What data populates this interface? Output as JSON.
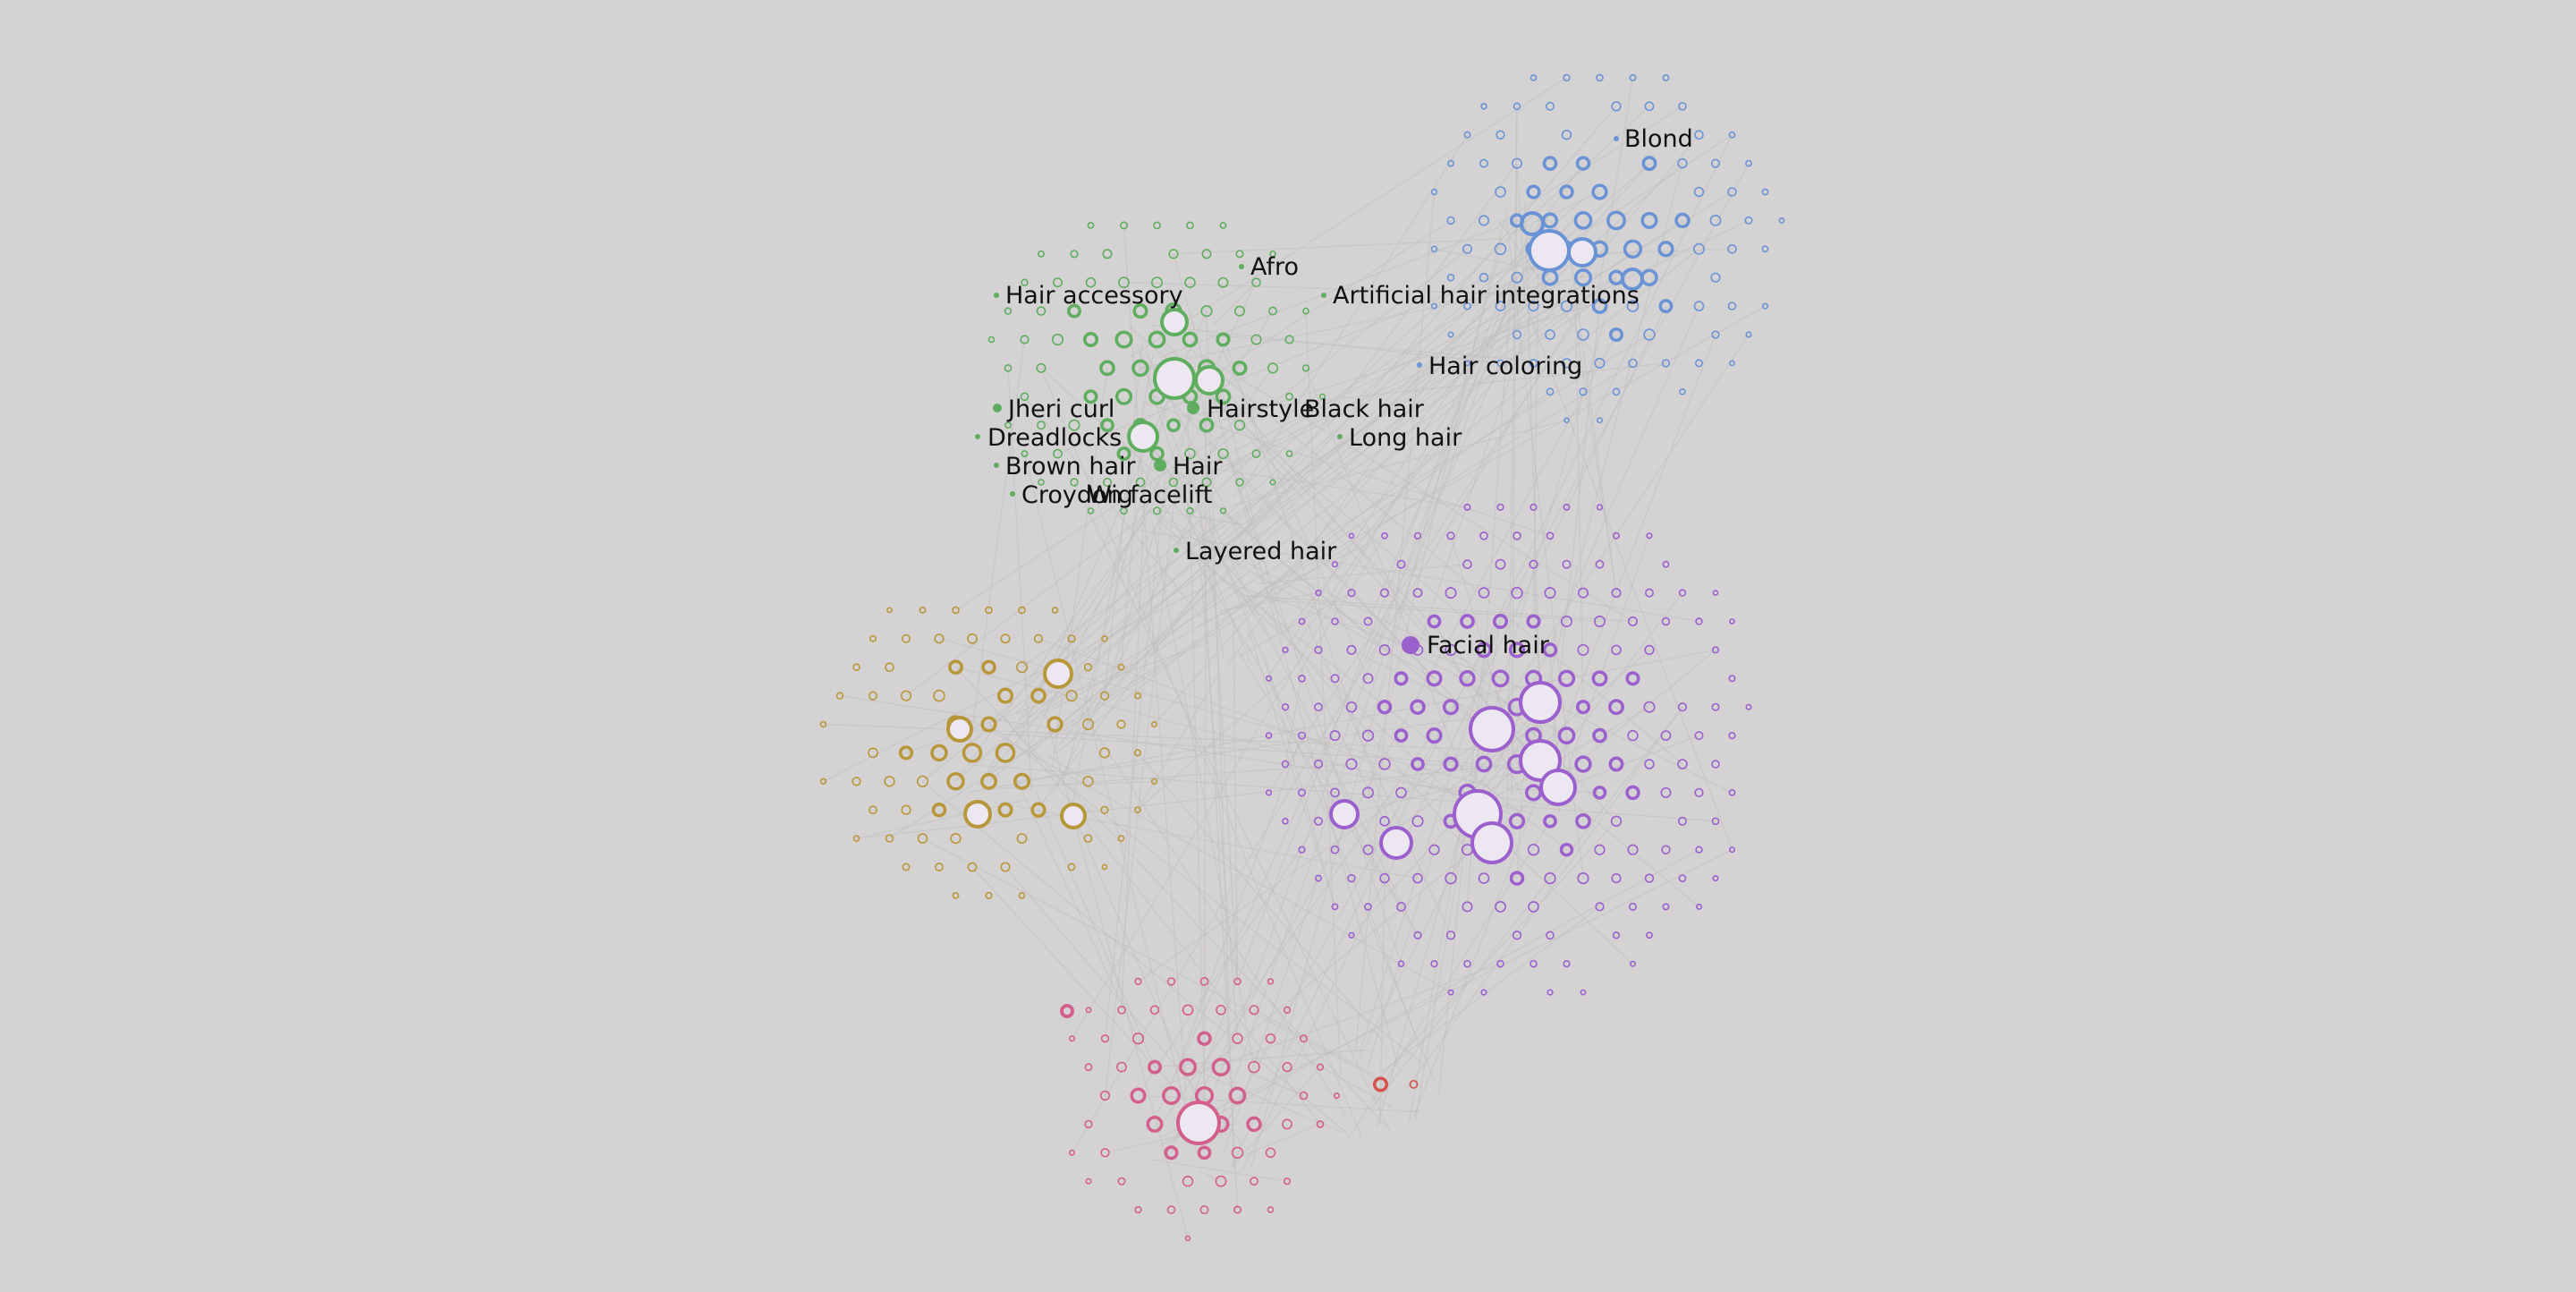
{
  "colors": {
    "background": "#d4d2d3",
    "edges": "#c2c0c1",
    "green": "#5fae5f",
    "blue": "#6a93d6",
    "purple": "#9b5fce",
    "gold": "#b8973a",
    "pink": "#d35f8c",
    "red": "#d4534c"
  },
  "labels": [
    {
      "id": "afro",
      "text": "Afro",
      "cluster": "green"
    },
    {
      "id": "hair-accessory",
      "text": "Hair accessory",
      "cluster": "green"
    },
    {
      "id": "artificial-hair-integrations",
      "text": "Artificial hair integrations",
      "cluster": "green"
    },
    {
      "id": "jheri-curl",
      "text": "Jheri curl",
      "cluster": "green"
    },
    {
      "id": "hairstyle",
      "text": "Hairstyle",
      "cluster": "green"
    },
    {
      "id": "black-hair",
      "text": "Black hair",
      "cluster": "green"
    },
    {
      "id": "dreadlocks",
      "text": "Dreadlocks",
      "cluster": "green"
    },
    {
      "id": "long-hair",
      "text": "Long hair",
      "cluster": "green"
    },
    {
      "id": "brown-hair",
      "text": "Brown hair",
      "cluster": "green"
    },
    {
      "id": "hair",
      "text": "Hair",
      "cluster": "green"
    },
    {
      "id": "croydon-facelift",
      "text": "Croydon facelift",
      "cluster": "green"
    },
    {
      "id": "wig",
      "text": "Wig",
      "cluster": "green"
    },
    {
      "id": "layered-hair",
      "text": "Layered hair",
      "cluster": "green"
    },
    {
      "id": "blond",
      "text": "Blond",
      "cluster": "blue"
    },
    {
      "id": "hair-coloring",
      "text": "Hair coloring",
      "cluster": "blue"
    },
    {
      "id": "facial-hair",
      "text": "Facial hair",
      "cluster": "purple"
    }
  ]
}
